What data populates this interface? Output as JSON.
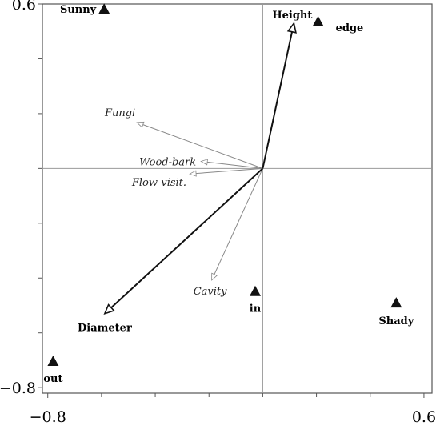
{
  "chart_data": {
    "type": "scatter",
    "subtype": "ordination-biplot",
    "title": "",
    "xlabel": "",
    "ylabel": "",
    "xlim": [
      -0.82,
      0.63
    ],
    "ylim": [
      -0.82,
      0.6
    ],
    "x_tick_labels": [
      {
        "value": -0.8,
        "label": "−0.8"
      },
      {
        "value": 0.6,
        "label": "0.6"
      }
    ],
    "y_tick_labels": [
      {
        "value": 0.6,
        "label": "0.6"
      },
      {
        "value": -0.8,
        "label": "−0.8"
      }
    ],
    "minor_ticks_x": [
      -0.6,
      -0.4,
      -0.2,
      0.0,
      0.2,
      0.4
    ],
    "minor_ticks_y": [
      0.4,
      0.2,
      0.0,
      -0.2,
      -0.4,
      -0.6
    ],
    "zero_lines": true,
    "sites": [
      {
        "name": "Sunny",
        "x": -0.59,
        "y": 0.582
      },
      {
        "name": "edge",
        "x": 0.206,
        "y": 0.536
      },
      {
        "name": "in",
        "x": -0.028,
        "y": -0.448
      },
      {
        "name": "Shady",
        "x": 0.497,
        "y": -0.49
      },
      {
        "name": "out",
        "x": -0.78,
        "y": -0.703
      }
    ],
    "environmental_vectors": [
      {
        "name": "Height",
        "x": 0.116,
        "y": 0.53
      },
      {
        "name": "Diameter",
        "x": -0.588,
        "y": -0.53
      }
    ],
    "species_vectors": [
      {
        "name": "Fungi",
        "x": -0.468,
        "y": 0.168
      },
      {
        "name": "Wood-bark",
        "x": -0.23,
        "y": 0.026
      },
      {
        "name": "Flow-visit.",
        "x": -0.272,
        "y": -0.02
      },
      {
        "name": "Cavity",
        "x": -0.19,
        "y": -0.408
      }
    ],
    "colors": {
      "site_marker": "#111111",
      "env_arrow": "#111111",
      "species_arrow": "#888888",
      "zero_line": "#999999",
      "frame": "#555555"
    }
  }
}
